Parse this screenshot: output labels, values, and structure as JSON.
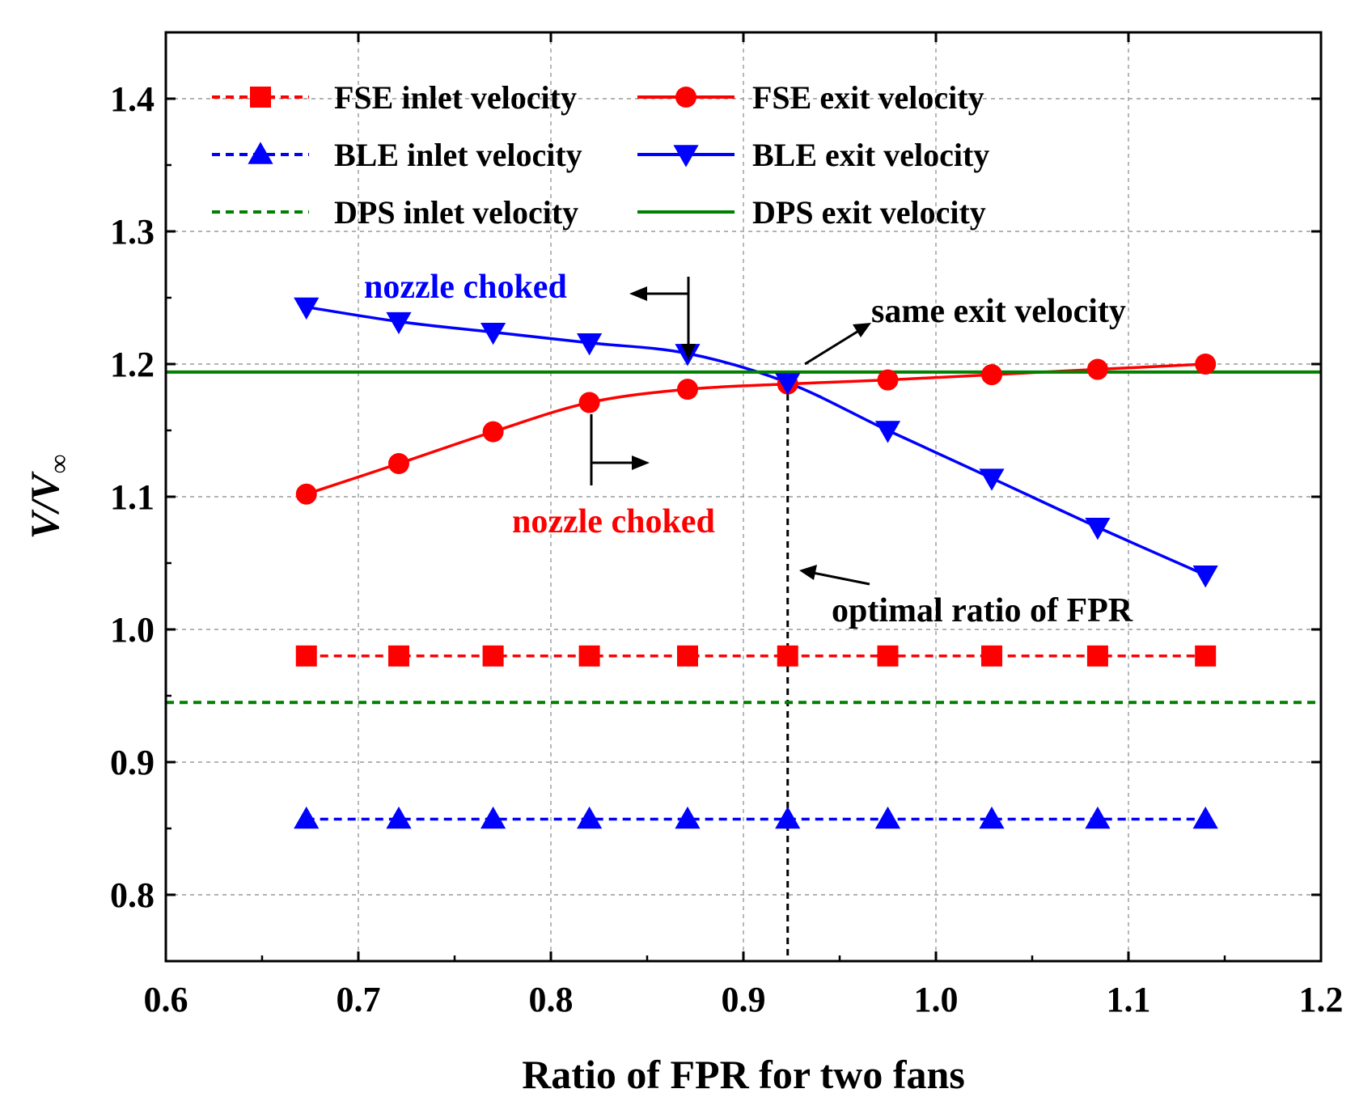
{
  "chart_data": {
    "type": "line",
    "title": "",
    "xlabel": "Ratio of FPR for two fans",
    "ylabel": {
      "main": "V/V",
      "subscript": "∞"
    },
    "xlim": [
      0.6,
      1.2
    ],
    "ylim": [
      0.75,
      1.45
    ],
    "xticks": [
      0.6,
      0.7,
      0.8,
      0.9,
      1.0,
      1.1,
      1.2
    ],
    "xtick_labels": [
      "0.6",
      "0.7",
      "0.8",
      "0.9",
      "1.0",
      "1.1",
      "1.2"
    ],
    "yticks": [
      0.8,
      0.9,
      1.0,
      1.1,
      1.2,
      1.3,
      1.4
    ],
    "ytick_labels": [
      "0.8",
      "0.9",
      "1.0",
      "1.1",
      "1.2",
      "1.3",
      "1.4"
    ],
    "grid": true,
    "legend_position": "top",
    "x": [
      0.673,
      0.721,
      0.77,
      0.82,
      0.871,
      0.923,
      0.975,
      1.029,
      1.084,
      1.14
    ],
    "series": [
      {
        "name": "FSE inlet velocity",
        "color": "#ff0000",
        "dash": "dashed",
        "marker": "square",
        "values": [
          0.98,
          0.98,
          0.98,
          0.98,
          0.98,
          0.98,
          0.98,
          0.98,
          0.98,
          0.98
        ]
      },
      {
        "name": "FSE exit velocity",
        "color": "#ff0000",
        "dash": "solid",
        "marker": "circle",
        "values": [
          1.102,
          1.125,
          1.149,
          1.171,
          1.181,
          1.185,
          1.188,
          1.192,
          1.196,
          1.2
        ]
      },
      {
        "name": "BLE inlet velocity",
        "color": "#0000ff",
        "dash": "dashed",
        "marker": "triangle-up",
        "values": [
          0.857,
          0.857,
          0.857,
          0.857,
          0.857,
          0.857,
          0.857,
          0.857,
          0.857,
          0.857
        ]
      },
      {
        "name": "BLE exit velocity",
        "color": "#0000ff",
        "dash": "solid",
        "marker": "triangle-down",
        "values": [
          1.243,
          1.232,
          1.224,
          1.216,
          1.208,
          1.186,
          1.15,
          1.114,
          1.077,
          1.041
        ]
      },
      {
        "name": "DPS inlet velocity",
        "color": "#008000",
        "dash": "dashed",
        "marker": "none",
        "constant": 0.945
      },
      {
        "name": "DPS exit velocity",
        "color": "#008000",
        "dash": "solid",
        "marker": "none",
        "constant": 1.194
      }
    ],
    "vline": {
      "x": 0.923,
      "color": "#000000"
    },
    "annotations": [
      {
        "text": "nozzle choked",
        "color": "#0000ff"
      },
      {
        "text": "same exit velocity",
        "color": "#000000"
      },
      {
        "text": "nozzle choked",
        "color": "#ff0000"
      },
      {
        "text": "optimal ratio of FPR",
        "color": "#000000"
      }
    ]
  }
}
